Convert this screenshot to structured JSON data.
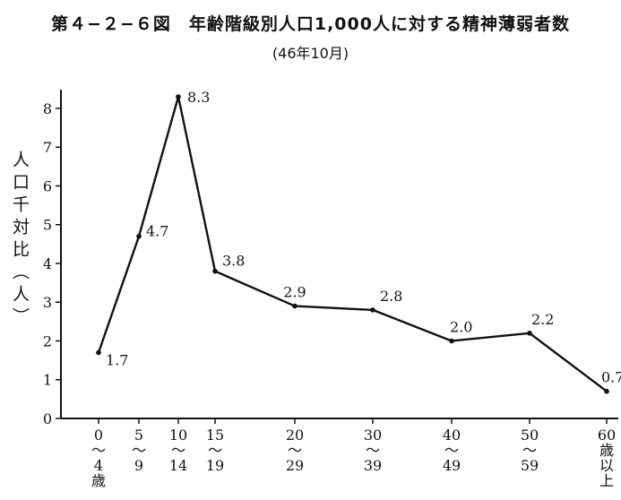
{
  "header": {
    "title": "第４−２−６図　年齢階級別人口1,000人に対する精神薄弱者数",
    "subtitle": "(46年10月)"
  },
  "chart_data": {
    "type": "line",
    "title": "第４−２−６図　年齢階級別人口1,000人に対する精神薄弱者数",
    "subtitle": "(46年10月)",
    "ylabel": "人口千対比（人）",
    "xlabel": "",
    "ylim": [
      0,
      8.6
    ],
    "yticks": [
      0,
      1,
      2,
      3,
      4,
      5,
      6,
      7,
      8
    ],
    "xticks": [
      {
        "x": 0,
        "label": [
          "0",
          "〜",
          "4",
          "歳"
        ]
      },
      {
        "x": 5,
        "label": [
          "5",
          "〜",
          "9"
        ]
      },
      {
        "x": 10,
        "label": [
          "10",
          "〜",
          "14"
        ]
      },
      {
        "x": 15,
        "label": [
          "15",
          "〜",
          "19"
        ]
      },
      {
        "x": 20,
        "label": [
          "20",
          "〜",
          "29"
        ]
      },
      {
        "x": 30,
        "label": [
          "30",
          "〜",
          "39"
        ]
      },
      {
        "x": 40,
        "label": [
          "40",
          "〜",
          "49"
        ]
      },
      {
        "x": 50,
        "label": [
          "50",
          "〜",
          "59"
        ]
      },
      {
        "x": 60,
        "label": [
          "60",
          "歳",
          "以",
          "上"
        ]
      }
    ],
    "series": [
      {
        "points": [
          {
            "x": 0,
            "y": 1.7,
            "label": "1.7"
          },
          {
            "x": 5,
            "y": 4.7,
            "label": "4.7"
          },
          {
            "x": 10,
            "y": 8.3,
            "label": "8.3"
          },
          {
            "x": 15,
            "y": 3.8,
            "label": "3.8"
          },
          {
            "x": 20,
            "y": 2.9,
            "label": "2.9"
          },
          {
            "x": 30,
            "y": 2.8,
            "label": "2.8"
          },
          {
            "x": 40,
            "y": 2.0,
            "label": "2.0"
          },
          {
            "x": 50,
            "y": 2.2,
            "label": "2.2"
          },
          {
            "x": 60,
            "y": 0.7,
            "label": "0.7"
          }
        ]
      }
    ],
    "grid": false,
    "colors": {
      "line": "#111111",
      "axis": "#111111"
    }
  }
}
